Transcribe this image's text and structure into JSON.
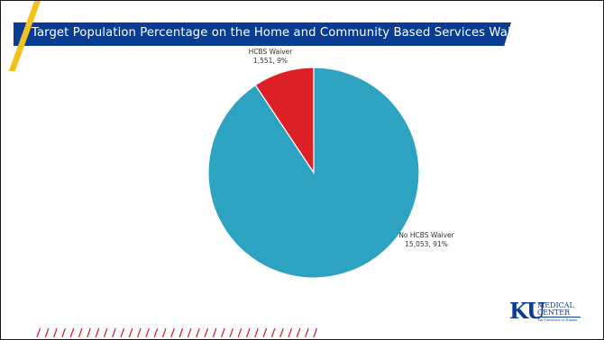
{
  "slide": {
    "title": "Target Population Percentage on the Home and Community Based Services Waivers"
  },
  "logo": {
    "ku": "KU",
    "line1": "MEDICAL",
    "line2": "CENTER",
    "line3": "The University of Kansas"
  },
  "colors": {
    "title_bar": "#0a3d91",
    "accent": "#f2c11c",
    "slash_red": "#d7192a"
  },
  "chart_data": {
    "type": "pie",
    "title": "",
    "categories": [
      "HCBS Waiver",
      "No HCBS Waiver"
    ],
    "values": [
      1551,
      15053
    ],
    "percentages": [
      9,
      91
    ],
    "colors": [
      "#dd1f26",
      "#2ea3c1"
    ],
    "labels": [
      {
        "name": "HCBS Waiver",
        "value_text": "1,551, 9%"
      },
      {
        "name": "No HCBS Waiver",
        "value_text": "15,053, 91%"
      }
    ]
  }
}
